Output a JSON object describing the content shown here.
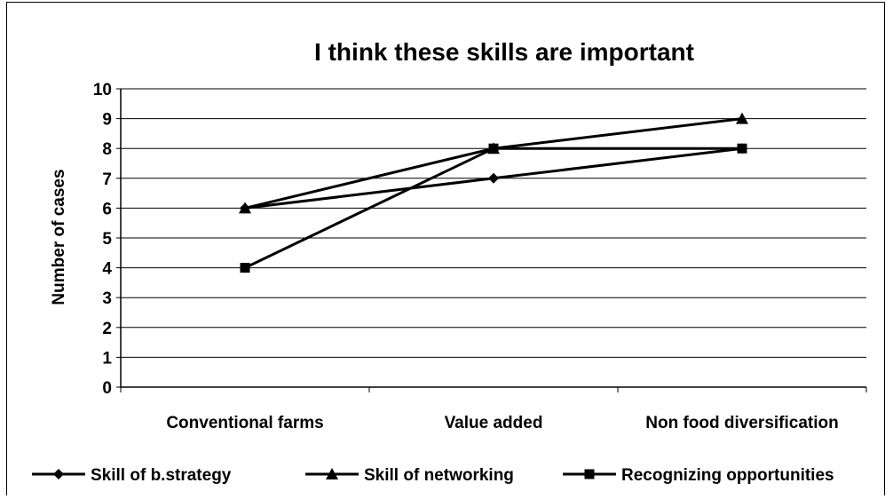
{
  "chart_data": {
    "type": "line",
    "title": "I think these skills are important",
    "xlabel": "",
    "ylabel": "Number of cases",
    "categories": [
      "Conventional farms",
      "Value added",
      "Non food diversification"
    ],
    "ylim": [
      0,
      10
    ],
    "yticks": [
      "0",
      "1",
      "2",
      "3",
      "4",
      "5",
      "6",
      "7",
      "8",
      "9",
      "10"
    ],
    "grid": true,
    "legend_position": "bottom",
    "line_color": "#000000",
    "series": [
      {
        "name": "Skill of b.strategy",
        "marker": "diamond",
        "values": [
          6,
          7,
          8
        ]
      },
      {
        "name": "Skill of networking",
        "marker": "triangle",
        "values": [
          6,
          8,
          9
        ]
      },
      {
        "name": "Recognizing opportunities",
        "marker": "square",
        "values": [
          4,
          8,
          8
        ]
      }
    ]
  }
}
